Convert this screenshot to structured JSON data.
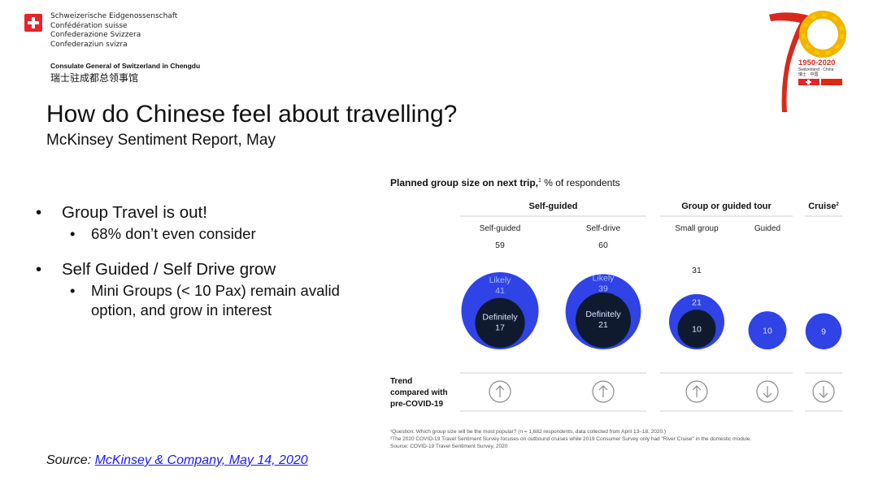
{
  "header": {
    "federation_names": [
      "Schweizerische Eidgenossenschaft",
      "Confédération suisse",
      "Confederazione Svizzera",
      "Confederaziun svizra"
    ],
    "consulate_en": "Consulate General of Switzerland in Chengdu",
    "consulate_zh": "瑞士驻成都总领事馆",
    "anniversary": {
      "years": "1950-2020",
      "subtitle": "Switzerland · China",
      "subtitle_zh": "瑞士 · 中国"
    }
  },
  "slide": {
    "title": "How do Chinese feel about travelling?",
    "subtitle": "McKinsey Sentiment Report, May"
  },
  "bullets": [
    {
      "text": "Group Travel is out!",
      "sub": [
        "68% don’t even consider"
      ]
    },
    {
      "text": "Self Guided / Self Drive grow",
      "sub": [
        "Mini Groups (< 10 Pax) remain avalid option, and grow in interest"
      ]
    }
  ],
  "source": {
    "prefix": "Source: ",
    "link_text": "McKinsey & Company, May 14, 2020"
  },
  "chart_data": {
    "type": "bubble",
    "title_bold": "Planned group size on next trip,",
    "title_sup": "1",
    "title_rest": " % of respondents",
    "groups": [
      {
        "label": "Self-guided",
        "sup": ""
      },
      {
        "label": "Group or guided tour",
        "sup": ""
      },
      {
        "label": "Cruise",
        "sup": "2"
      }
    ],
    "categories": [
      {
        "name": "Self-guided",
        "total": "59",
        "likely_label": "Likely",
        "likely": 41,
        "definitely_label": "Definitely",
        "definitely": 17,
        "trend": "up"
      },
      {
        "name": "Self-drive",
        "total": "60",
        "likely_label": "Likely",
        "likely": 39,
        "definitely_label": "Definitely",
        "definitely": 21,
        "trend": "up"
      },
      {
        "name": "Small group",
        "total": "31",
        "likely_label": "",
        "likely": 21,
        "definitely_label": "",
        "definitely": 10,
        "trend": "up"
      },
      {
        "name": "Guided",
        "total": "",
        "likely_label": "",
        "likely": 10,
        "definitely_label": "",
        "definitely": null,
        "trend": "down"
      },
      {
        "name": "",
        "total": "",
        "likely_label": "",
        "likely": 9,
        "definitely_label": "",
        "definitely": null,
        "trend": "down"
      }
    ],
    "trend_label": [
      "Trend",
      "compared with",
      "pre-COVID-19"
    ],
    "footnotes": [
      "¹Question: Which group size will be the most popular? (n = 1,682 respondents, data collected from April 13–18, 2020.)",
      "²The 2020 COVID-19 Travel Sentiment Survey focuses on outbound cruises while 2019 Consumer Survey only had \"River Cruise\" in the domestic module.",
      "Source: COVID-19 Travel Sentiment Survey, 2020"
    ],
    "colors": {
      "outer": "#2f43e6",
      "inner": "#0f1a2e",
      "trend_circle": "#8a8a8a",
      "divider": "#cfcfcf"
    }
  }
}
